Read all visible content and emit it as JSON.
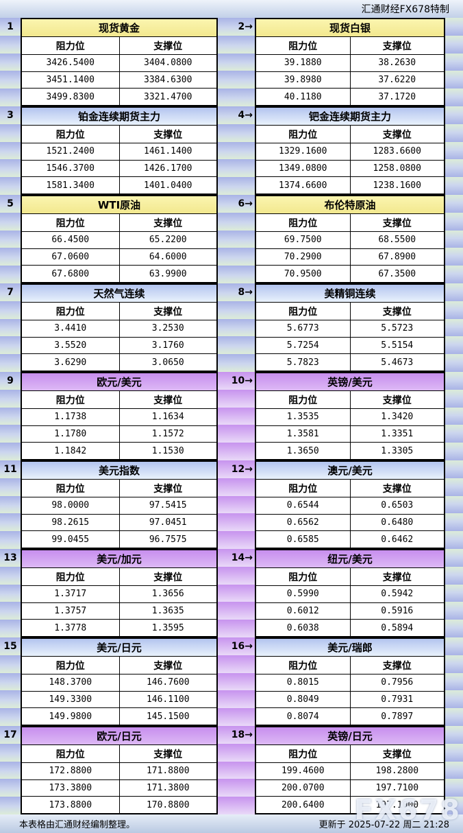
{
  "header": {
    "brand": "汇通财经FX678特制"
  },
  "columns": {
    "resistance": "阻力位",
    "support": "支撑位"
  },
  "footer": {
    "note": "本表格由汇通财经编制整理。",
    "updated": "更新于 2025-07-22 周二 21:28"
  },
  "watermark": "FX678",
  "colors": {
    "title_yellow": "#f7f0a0",
    "title_blue": "#b5c5ef",
    "title_purple": "#c88fee",
    "spacer_purple": "#c998ee",
    "side_blue": "#a9b3e6",
    "side_green": "#dcecd8",
    "bar_blue": "#c2d0e8"
  },
  "blocks": [
    {
      "index": "1",
      "title": "现货黄金",
      "style": "yellow",
      "rows": [
        [
          "3426.5400",
          "3404.0800"
        ],
        [
          "3451.1400",
          "3384.6300"
        ],
        [
          "3499.8300",
          "3321.4700"
        ]
      ]
    },
    {
      "index": "2→",
      "title": "现货白银",
      "style": "yellow",
      "rows": [
        [
          "39.1880",
          "38.2630"
        ],
        [
          "39.8980",
          "37.6220"
        ],
        [
          "40.1180",
          "37.1720"
        ]
      ]
    },
    {
      "index": "3",
      "title": "铂金连续期货主力",
      "style": "blue",
      "rows": [
        [
          "1521.2400",
          "1461.1400"
        ],
        [
          "1546.3700",
          "1426.1700"
        ],
        [
          "1581.3400",
          "1401.0400"
        ]
      ]
    },
    {
      "index": "4→",
      "title": "钯金连续期货主力",
      "style": "blue",
      "rows": [
        [
          "1329.1600",
          "1283.6600"
        ],
        [
          "1349.0800",
          "1258.0800"
        ],
        [
          "1374.6600",
          "1238.1600"
        ]
      ]
    },
    {
      "index": "5",
      "title": "WTI原油",
      "style": "yellow",
      "rows": [
        [
          "66.4500",
          "65.2200"
        ],
        [
          "67.0600",
          "64.6000"
        ],
        [
          "67.6800",
          "63.9900"
        ]
      ]
    },
    {
      "index": "6→",
      "title": "布伦特原油",
      "style": "yellow",
      "rows": [
        [
          "69.7500",
          "68.5500"
        ],
        [
          "70.2900",
          "67.8900"
        ],
        [
          "70.9500",
          "67.3500"
        ]
      ]
    },
    {
      "index": "7",
      "title": "天然气连续",
      "style": "blue",
      "rows": [
        [
          "3.4410",
          "3.2530"
        ],
        [
          "3.5520",
          "3.1760"
        ],
        [
          "3.6290",
          "3.0650"
        ]
      ]
    },
    {
      "index": "8→",
      "title": "美精铜连续",
      "style": "blue",
      "rows": [
        [
          "5.6773",
          "5.5723"
        ],
        [
          "5.7254",
          "5.5154"
        ],
        [
          "5.7823",
          "5.4673"
        ]
      ]
    },
    {
      "index": "9",
      "title": "欧元/美元",
      "style": "purple",
      "rows": [
        [
          "1.1738",
          "1.1634"
        ],
        [
          "1.1780",
          "1.1572"
        ],
        [
          "1.1842",
          "1.1530"
        ]
      ]
    },
    {
      "index": "10→",
      "title": "英镑/美元",
      "style": "purple",
      "rows": [
        [
          "1.3535",
          "1.3420"
        ],
        [
          "1.3581",
          "1.3351"
        ],
        [
          "1.3650",
          "1.3305"
        ]
      ]
    },
    {
      "index": "11",
      "title": "美元指数",
      "style": "blue",
      "rows": [
        [
          "98.0000",
          "97.5415"
        ],
        [
          "98.2615",
          "97.0451"
        ],
        [
          "99.0455",
          "96.7575"
        ]
      ]
    },
    {
      "index": "12→",
      "title": "澳元/美元",
      "style": "blue",
      "rows": [
        [
          "0.6544",
          "0.6503"
        ],
        [
          "0.6562",
          "0.6480"
        ],
        [
          "0.6585",
          "0.6462"
        ]
      ]
    },
    {
      "index": "13",
      "title": "美元/加元",
      "style": "purple",
      "rows": [
        [
          "1.3717",
          "1.3656"
        ],
        [
          "1.3757",
          "1.3635"
        ],
        [
          "1.3778",
          "1.3595"
        ]
      ]
    },
    {
      "index": "14→",
      "title": "纽元/美元",
      "style": "purple",
      "rows": [
        [
          "0.5990",
          "0.5942"
        ],
        [
          "0.6012",
          "0.5916"
        ],
        [
          "0.6038",
          "0.5894"
        ]
      ]
    },
    {
      "index": "15",
      "title": "美元/日元",
      "style": "blue",
      "rows": [
        [
          "148.3700",
          "146.7600"
        ],
        [
          "149.3300",
          "146.1100"
        ],
        [
          "149.9800",
          "145.1500"
        ]
      ]
    },
    {
      "index": "16→",
      "title": "美元/瑞郎",
      "style": "blue",
      "rows": [
        [
          "0.8015",
          "0.7956"
        ],
        [
          "0.8049",
          "0.7931"
        ],
        [
          "0.8074",
          "0.7897"
        ]
      ]
    },
    {
      "index": "17",
      "title": "欧元/日元",
      "style": "purple",
      "rows": [
        [
          "172.8800",
          "171.8800"
        ],
        [
          "173.3800",
          "171.3800"
        ],
        [
          "173.8800",
          "170.8800"
        ]
      ]
    },
    {
      "index": "18→",
      "title": "英镑/日元",
      "style": "purple",
      "rows": [
        [
          "199.4600",
          "198.2800"
        ],
        [
          "200.0700",
          "197.7100"
        ],
        [
          "200.6400",
          "197.1000"
        ]
      ]
    }
  ]
}
